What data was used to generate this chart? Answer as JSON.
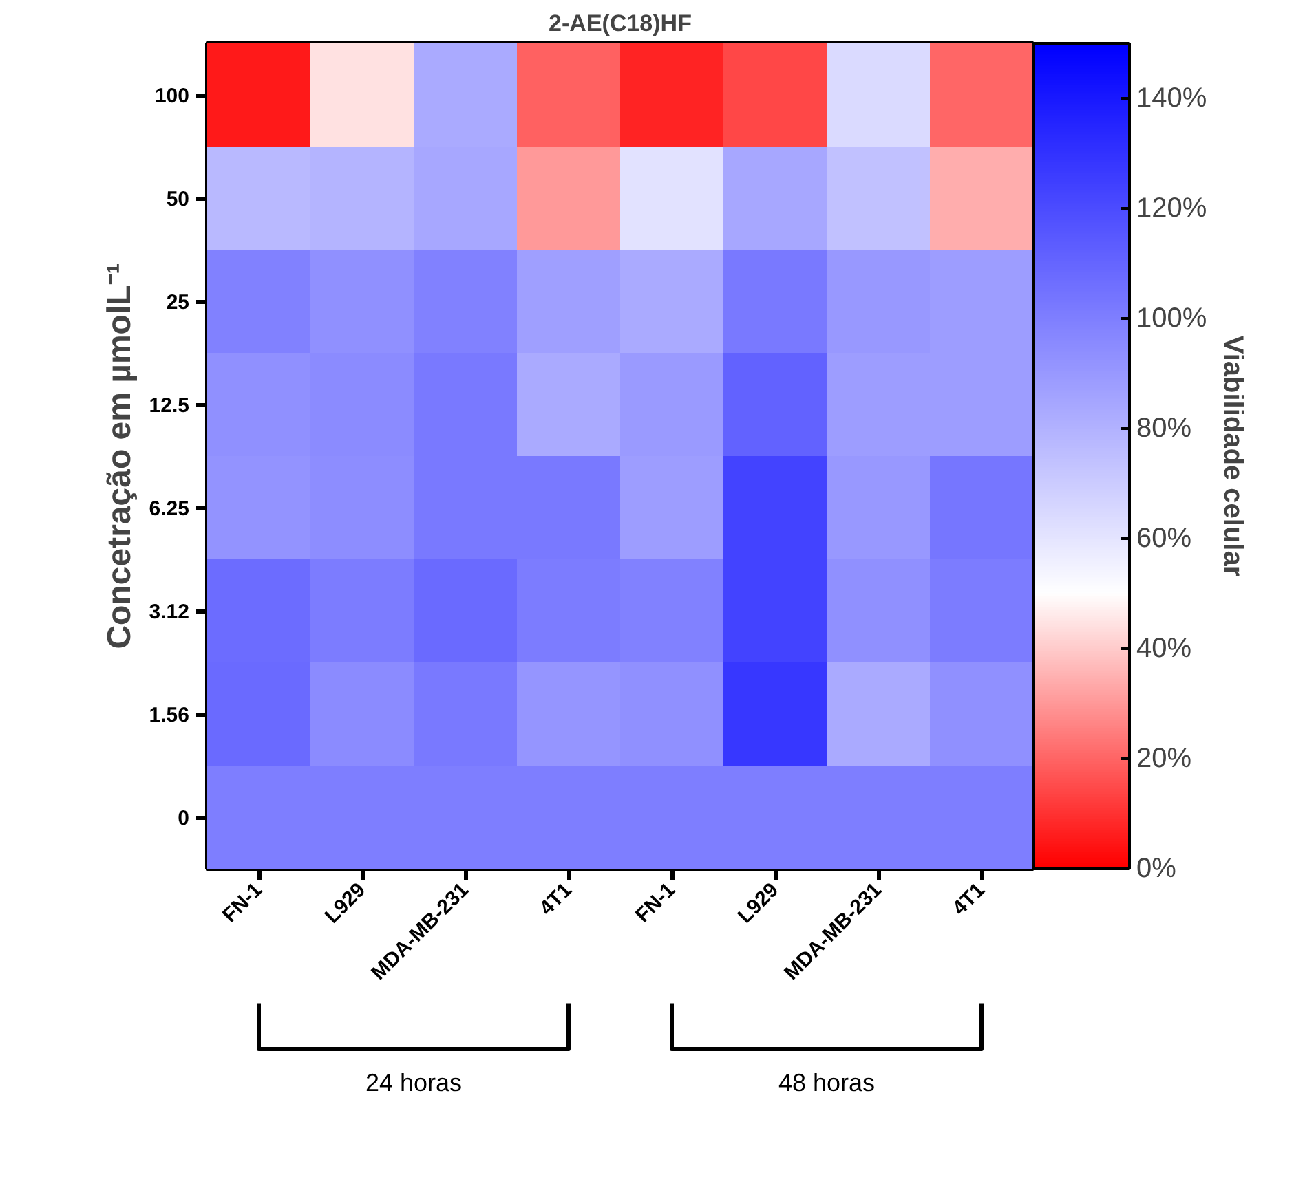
{
  "chart_data": {
    "type": "heatmap",
    "title": "2-AE(C18)HF",
    "ylabel": "Concetração em µmolL⁻¹",
    "clabel": "Viabilidade celular",
    "categories": [
      "FN-1",
      "L929",
      "MDA-MB-231",
      "4T1",
      "FN-1",
      "L929",
      "MDA-MB-231",
      "4T1"
    ],
    "y_categories": [
      "100",
      "50",
      "25",
      "12.5",
      "6.25",
      "3.12",
      "1.56",
      "0"
    ],
    "cells": [
      [
        5,
        44,
        83,
        19,
        7,
        14,
        64,
        20
      ],
      [
        77,
        79,
        84,
        30,
        61,
        84,
        74,
        34
      ],
      [
        99,
        93,
        99,
        87,
        83,
        102,
        90,
        88
      ],
      [
        93,
        95,
        102,
        83,
        89,
        111,
        88,
        88
      ],
      [
        92,
        94,
        102,
        102,
        88,
        123,
        90,
        103
      ],
      [
        107,
        101,
        108,
        101,
        99,
        123,
        93,
        101
      ],
      [
        108,
        95,
        102,
        91,
        93,
        128,
        83,
        93
      ],
      [
        100,
        100,
        100,
        100,
        100,
        100,
        100,
        100
      ]
    ],
    "clim": [
      0,
      150
    ],
    "cticks": [
      {
        "value": 0,
        "label": "0%"
      },
      {
        "value": 20,
        "label": "20%"
      },
      {
        "value": 40,
        "label": "40%"
      },
      {
        "value": 60,
        "label": "60%"
      },
      {
        "value": 80,
        "label": "80%"
      },
      {
        "value": 100,
        "label": "100%"
      },
      {
        "value": 120,
        "label": "120%"
      },
      {
        "value": 140,
        "label": "140%"
      }
    ],
    "annotations": [
      "24 horas",
      "48 horas"
    ]
  }
}
